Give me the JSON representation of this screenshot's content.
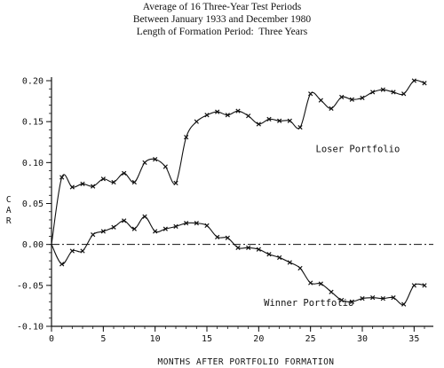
{
  "chart_data": {
    "type": "line",
    "title": [
      "Average of 16 Three-Year Test Periods",
      "Between January 1933 and December 1980",
      "Length of Formation Period:  Three Years"
    ],
    "xlabel": "MONTHS AFTER PORTFOLIO FORMATION",
    "ylabel": "CAR",
    "xlim": [
      0,
      36
    ],
    "ylim": [
      -0.1,
      0.2
    ],
    "xticks": [
      0,
      5,
      10,
      15,
      20,
      25,
      30,
      35
    ],
    "yticks": [
      -0.1,
      -0.05,
      0.0,
      0.05,
      0.1,
      0.15,
      0.2
    ],
    "xtick_labels": [
      "0",
      "5",
      "10",
      "15",
      "20",
      "25",
      "30",
      "35"
    ],
    "ytick_labels": [
      "-0.10",
      "-0.05",
      "0.00",
      "0.05",
      "0.10",
      "0.15",
      "0.20"
    ],
    "zero_line": true,
    "grid": false,
    "x": [
      0,
      1,
      2,
      3,
      4,
      5,
      6,
      7,
      8,
      9,
      10,
      11,
      12,
      13,
      14,
      15,
      16,
      17,
      18,
      19,
      20,
      21,
      22,
      23,
      24,
      25,
      26,
      27,
      28,
      29,
      30,
      31,
      32,
      33,
      34,
      35,
      36
    ],
    "series": [
      {
        "name": "Loser Portfolio",
        "values": [
          0.0,
          0.082,
          0.07,
          0.074,
          0.071,
          0.08,
          0.076,
          0.087,
          0.076,
          0.1,
          0.104,
          0.095,
          0.075,
          0.131,
          0.15,
          0.158,
          0.162,
          0.158,
          0.163,
          0.157,
          0.147,
          0.153,
          0.151,
          0.151,
          0.143,
          0.184,
          0.176,
          0.166,
          0.18,
          0.177,
          0.179,
          0.186,
          0.189,
          0.186,
          0.184,
          0.2,
          0.197
        ]
      },
      {
        "name": "Winner Portfolio",
        "values": [
          0.0,
          -0.024,
          -0.008,
          -0.008,
          0.012,
          0.016,
          0.021,
          0.029,
          0.019,
          0.034,
          0.016,
          0.019,
          0.022,
          0.026,
          0.026,
          0.023,
          0.009,
          0.008,
          -0.004,
          -0.004,
          -0.006,
          -0.012,
          -0.016,
          -0.022,
          -0.029,
          -0.047,
          -0.048,
          -0.058,
          -0.068,
          -0.07,
          -0.066,
          -0.065,
          -0.066,
          -0.065,
          -0.073,
          -0.05,
          -0.05
        ]
      }
    ],
    "annotations": [
      {
        "text": "Loser Portfolio",
        "x": 25.5,
        "y": 0.113
      },
      {
        "text": "Winner Portfolio",
        "x": 20.5,
        "y": -0.075
      }
    ]
  }
}
